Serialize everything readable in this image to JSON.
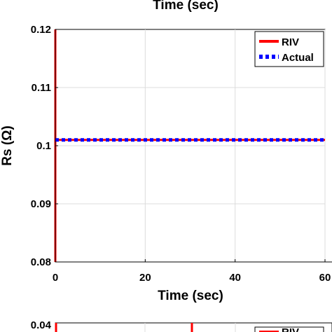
{
  "top_partial": {
    "xlabel": "Time (sec)"
  },
  "chart_data": [
    {
      "type": "line",
      "xlabel": "Time (sec)",
      "ylabel": "Rs (Ω)",
      "xlim": [
        0,
        60
      ],
      "ylim": [
        0.08,
        0.12
      ],
      "xticks": [
        "0",
        "20",
        "40",
        "60"
      ],
      "yticks": [
        "0.08",
        "0.09",
        "0.1",
        "0.11",
        "0.12"
      ],
      "grid": true,
      "legend_position": "top-right",
      "series": [
        {
          "name": "RIV",
          "color": "#ff0000",
          "style": "solid",
          "x": [
            0,
            0,
            0,
            60
          ],
          "y": [
            0.08,
            0.12,
            0.101,
            0.101
          ]
        },
        {
          "name": "Actual",
          "color": "#0000ff",
          "style": "dotted",
          "x": [
            0,
            60
          ],
          "y": [
            0.101,
            0.101
          ]
        }
      ]
    },
    {
      "type": "line",
      "yticks": [
        "0.04"
      ],
      "ylim_top": 0.04,
      "legend_position": "top-right",
      "series": [
        {
          "name": "RIV",
          "color": "#ff0000",
          "style": "solid"
        }
      ]
    }
  ]
}
